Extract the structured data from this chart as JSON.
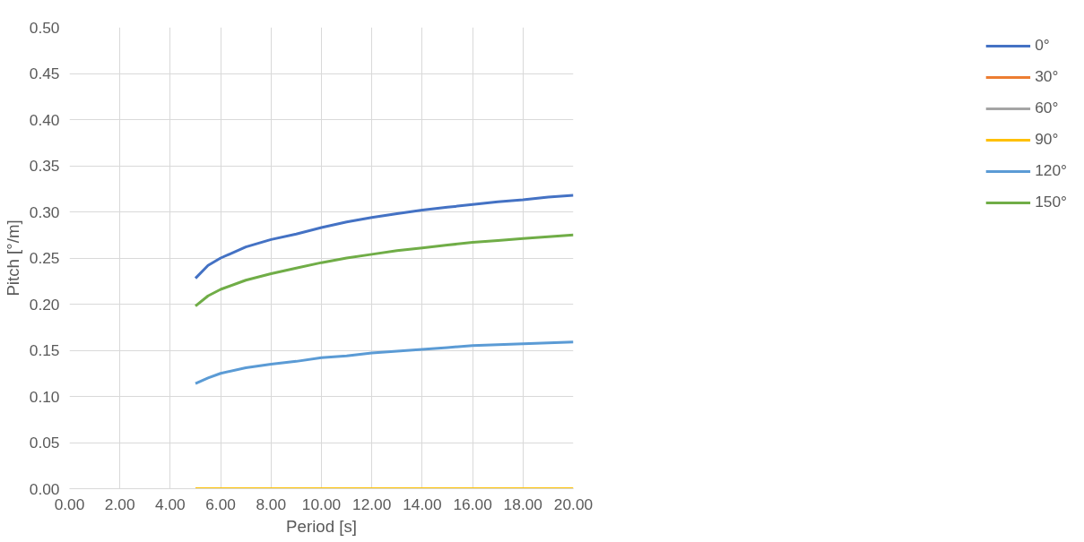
{
  "chart_data": {
    "type": "line",
    "xlabel": "Period [s]",
    "ylabel": "Pitch [°/m]",
    "x": [
      5,
      5.5,
      6,
      7,
      8,
      9,
      10,
      11,
      12,
      13,
      14,
      15,
      16,
      17,
      18,
      19,
      20
    ],
    "series": [
      {
        "name": "0°",
        "color": "#4472c4",
        "values": [
          0.228,
          0.242,
          0.25,
          0.262,
          0.27,
          0.276,
          0.283,
          0.289,
          0.294,
          0.298,
          0.302,
          0.305,
          0.308,
          0.311,
          0.313,
          0.316,
          0.318
        ]
      },
      {
        "name": "30°",
        "color": "#ed7d31",
        "values": [
          null,
          null,
          null,
          null,
          null,
          null,
          null,
          null,
          null,
          null,
          null,
          null,
          null,
          null,
          null,
          null,
          null
        ]
      },
      {
        "name": "60°",
        "color": "#a5a5a5",
        "values": [
          null,
          null,
          null,
          null,
          null,
          null,
          null,
          null,
          null,
          null,
          null,
          null,
          null,
          null,
          null,
          null,
          null
        ]
      },
      {
        "name": "90°",
        "color": "#ffc000",
        "values": [
          0,
          0,
          0,
          0,
          0,
          0,
          0,
          0,
          0,
          0,
          0,
          0,
          0,
          0,
          0,
          0,
          0
        ]
      },
      {
        "name": "120°",
        "color": "#5b9bd5",
        "values": [
          0.114,
          0.12,
          0.125,
          0.131,
          0.135,
          0.138,
          0.142,
          0.144,
          0.147,
          0.149,
          0.151,
          0.153,
          0.155,
          0.156,
          0.157,
          0.158,
          0.159
        ]
      },
      {
        "name": "150°",
        "color": "#70ad47",
        "values": [
          0.198,
          0.209,
          0.216,
          0.226,
          0.233,
          0.239,
          0.245,
          0.25,
          0.254,
          0.258,
          0.261,
          0.264,
          0.267,
          0.269,
          0.271,
          0.273,
          0.275
        ]
      }
    ],
    "xlim": [
      0,
      20
    ],
    "xticks": [
      {
        "value": 0,
        "label": "0.00"
      },
      {
        "value": 2,
        "label": "2.00"
      },
      {
        "value": 4,
        "label": "4.00"
      },
      {
        "value": 6,
        "label": "6.00"
      },
      {
        "value": 8,
        "label": "8.00"
      },
      {
        "value": 10,
        "label": "10.00"
      },
      {
        "value": 12,
        "label": "12.00"
      },
      {
        "value": 14,
        "label": "14.00"
      },
      {
        "value": 16,
        "label": "16.00"
      },
      {
        "value": 18,
        "label": "18.00"
      },
      {
        "value": 20,
        "label": "20.00"
      }
    ],
    "ylim": [
      0,
      0.5
    ],
    "yticks": [
      {
        "value": 0,
        "label": "0.00"
      },
      {
        "value": 0.05,
        "label": "0.05"
      },
      {
        "value": 0.1,
        "label": "0.10"
      },
      {
        "value": 0.15,
        "label": "0.15"
      },
      {
        "value": 0.2,
        "label": "0.20"
      },
      {
        "value": 0.25,
        "label": "0.25"
      },
      {
        "value": 0.3,
        "label": "0.30"
      },
      {
        "value": 0.35,
        "label": "0.35"
      },
      {
        "value": 0.4,
        "label": "0.40"
      },
      {
        "value": 0.45,
        "label": "0.45"
      },
      {
        "value": 0.5,
        "label": "0.50"
      }
    ],
    "grid": true,
    "legend": "right",
    "marker": "none",
    "line_style": "solid"
  }
}
